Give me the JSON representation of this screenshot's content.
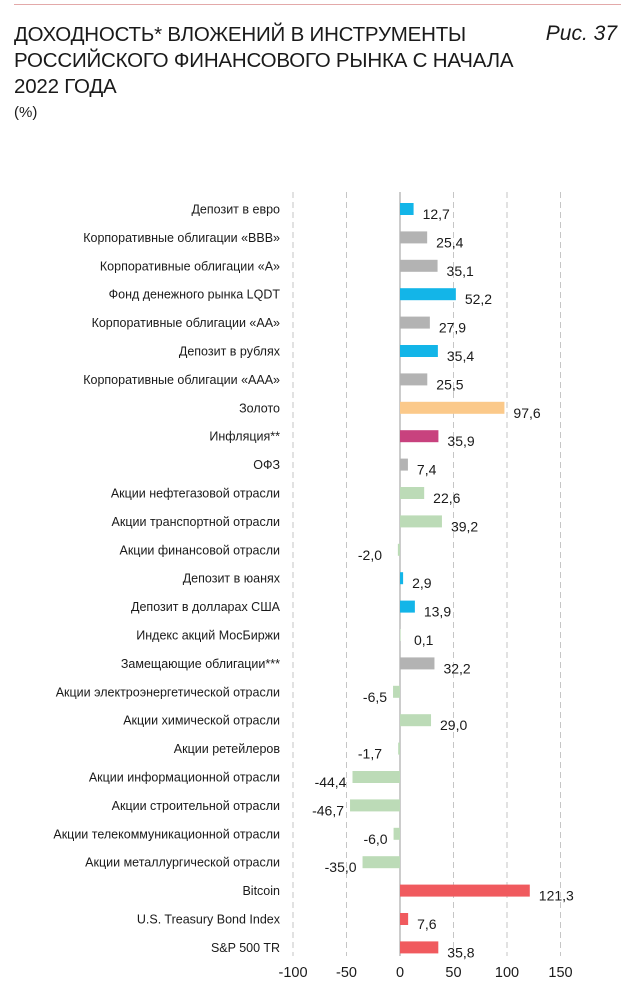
{
  "header": {
    "title": "ДОХОДНОСТЬ* ВЛОЖЕНИЙ В ИНСТРУМЕНТЫ\nРОССИЙСКОГО ФИНАНСОВОГО РЫНКА С НАЧАЛА\n2022 ГОДА",
    "figure_label": "Рис. 37",
    "unit": "(%)"
  },
  "colors": {
    "blue": "#13b5e8",
    "gray": "#b3b3b3",
    "orange": "#fbc98a",
    "magenta": "#c8427e",
    "green": "#bcdbb7",
    "red": "#f05a5e"
  },
  "chart_data": {
    "type": "bar",
    "orientation": "horizontal",
    "xlim": [
      -100,
      150
    ],
    "xticks": [
      -100,
      -50,
      0,
      50,
      100,
      150
    ],
    "xtick_labels": [
      "-100",
      "-50",
      "0",
      "50",
      "100",
      "150"
    ],
    "grid": "vertical dashed",
    "categories": [
      "Депозит в евро",
      "Корпоративные облигации «BBB»",
      "Корпоративные облигации «А»",
      "Фонд денежного рынка LQDT",
      "Корпоративные облигации «АА»",
      "Депозит в рублях",
      "Корпоративные облигации «ААА»",
      "Золото",
      "Инфляция**",
      "ОФЗ",
      "Акции нефтегазовой отрасли",
      "Акции транспортной отрасли",
      "Акции финансовой отрасли",
      "Депозит в юанях",
      "Депозит в долларах США",
      "Индекс акций МосБиржи",
      "Замещающие облигации***",
      "Акции электроэнергетической отрасли",
      "Акции химической отрасли",
      "Акции ретейлеров",
      "Акции информационной отрасли",
      "Акции строительной отрасли",
      "Акции телекоммуникационной отрасли",
      "Акции металлургической отрасли",
      "Bitcoin",
      "U.S. Treasury Bond Index",
      "S&P 500 TR"
    ],
    "values": [
      12.7,
      25.4,
      35.1,
      52.2,
      27.9,
      35.4,
      25.5,
      97.6,
      35.9,
      7.4,
      22.6,
      39.2,
      -2.0,
      2.9,
      13.9,
      0.1,
      32.2,
      -6.5,
      29.0,
      -1.7,
      -44.4,
      -46.7,
      -6.0,
      -35.0,
      121.3,
      7.6,
      35.8
    ],
    "value_labels": [
      "12,7",
      "25,4",
      "35,1",
      "52,2",
      "27,9",
      "35,4",
      "25,5",
      "97,6",
      "35,9",
      "7,4",
      "22,6",
      "39,2",
      "-2,0",
      "2,9",
      "13,9",
      "0,1",
      "32,2",
      "-6,5",
      "29,0",
      "-1,7",
      "-44,4",
      "-46,7",
      "-6,0",
      "-35,0",
      "121,3",
      "7,6",
      "35,8"
    ],
    "bar_colors": [
      "blue",
      "gray",
      "gray",
      "blue",
      "gray",
      "blue",
      "gray",
      "orange",
      "magenta",
      "gray",
      "green",
      "green",
      "green",
      "blue",
      "blue",
      "green",
      "gray",
      "green",
      "green",
      "green",
      "green",
      "green",
      "green",
      "green",
      "red",
      "red",
      "red"
    ]
  }
}
